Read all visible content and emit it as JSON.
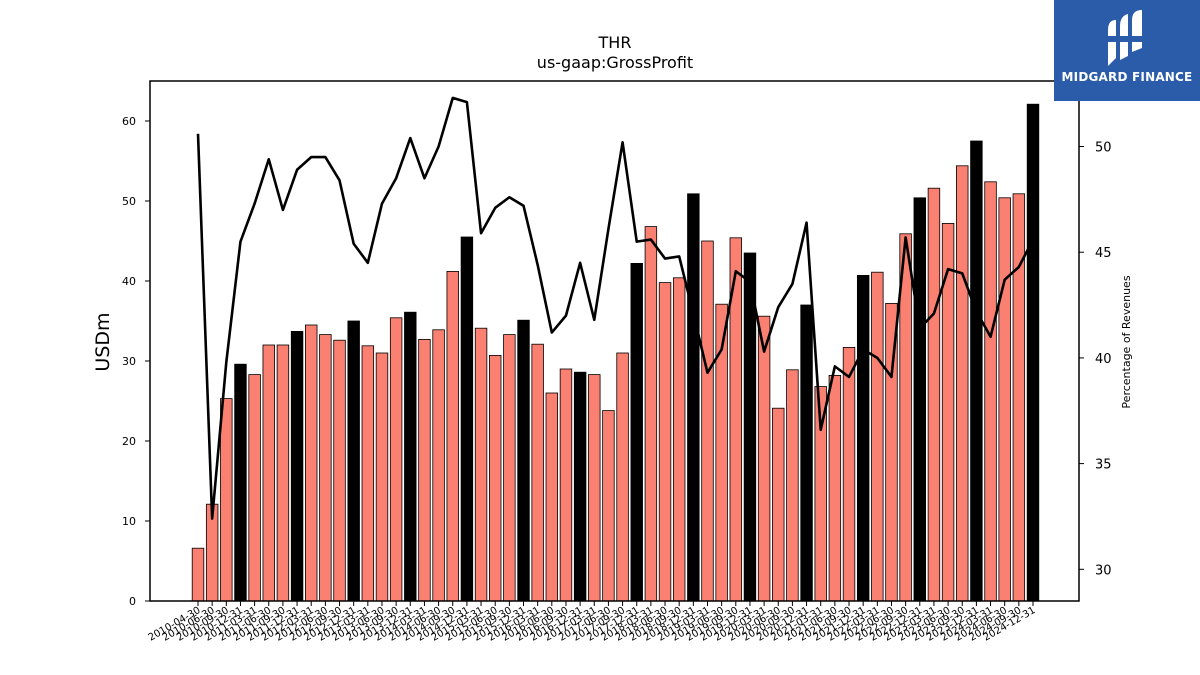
{
  "chart_data": {
    "type": "bar",
    "title": "THR",
    "subtitle": "us-gaap:GrossProfit",
    "ylabel": "USDm",
    "y2label": "Percentage of Revenues",
    "ylim": [
      0,
      65
    ],
    "y2lim": [
      28.5,
      53.1
    ],
    "yticks": [
      0,
      10,
      20,
      30,
      40,
      50,
      60
    ],
    "y2ticks": [
      30,
      35,
      40,
      45,
      50
    ],
    "categories": [
      "2010-04-30",
      "2010-06-30",
      "2010-09-30",
      "2010-12-31",
      "2011-03-31",
      "2011-06-30",
      "2011-09-30",
      "2011-12-31",
      "2012-03-31",
      "2012-06-30",
      "2012-09-30",
      "2012-12-31",
      "2013-03-31",
      "2013-06-30",
      "2013-09-30",
      "2013-12-31",
      "2014-03-31",
      "2014-06-30",
      "2014-09-30",
      "2014-12-31",
      "2015-03-31",
      "2015-06-30",
      "2015-09-30",
      "2015-12-31",
      "2016-03-31",
      "2016-06-30",
      "2016-09-30",
      "2016-12-31",
      "2017-03-31",
      "2017-06-30",
      "2017-09-30",
      "2017-12-31",
      "2018-03-31",
      "2018-06-30",
      "2018-09-30",
      "2018-12-31",
      "2019-03-31",
      "2019-06-30",
      "2019-09-30",
      "2019-12-31",
      "2020-03-31",
      "2020-06-30",
      "2020-09-30",
      "2020-12-31",
      "2021-03-31",
      "2021-06-30",
      "2021-09-30",
      "2021-12-31",
      "2022-03-31",
      "2022-06-30",
      "2022-09-30",
      "2022-12-31",
      "2023-03-31",
      "2023-06-30",
      "2023-09-30",
      "2023-12-31",
      "2024-03-31",
      "2024-06-30",
      "2024-09-30",
      "2024-12-31"
    ],
    "series": [
      {
        "values": [
          6.6,
          12.1,
          25.3,
          29.6,
          28.3,
          32.0,
          32.0,
          33.7,
          34.5,
          33.3,
          32.6,
          35.0,
          31.9,
          31.0,
          35.4,
          36.1,
          32.7,
          33.9,
          41.2,
          45.5,
          34.1,
          30.7,
          33.3,
          35.1,
          32.1,
          26.0,
          29.0,
          28.6,
          28.3,
          23.8,
          31.0,
          42.2,
          46.8,
          39.8,
          40.4,
          50.9,
          45.0,
          37.1,
          45.4,
          43.5,
          35.6,
          24.1,
          28.9,
          37.0,
          26.8,
          28.2,
          31.7,
          40.7,
          41.1,
          37.2,
          45.9,
          50.4,
          51.6,
          47.2,
          54.4,
          57.5,
          52.4,
          50.4,
          50.9,
          62.1
        ],
        "annual": [
          false,
          false,
          false,
          true,
          false,
          false,
          false,
          true,
          false,
          false,
          false,
          true,
          false,
          false,
          false,
          true,
          false,
          false,
          false,
          true,
          false,
          false,
          false,
          true,
          false,
          false,
          false,
          true,
          false,
          false,
          false,
          true,
          false,
          false,
          false,
          true,
          false,
          false,
          false,
          true,
          false,
          false,
          false,
          true,
          false,
          false,
          false,
          true,
          false,
          false,
          false,
          true,
          false,
          false,
          false,
          true,
          false,
          false,
          false,
          true
        ],
        "color": "#fa8072",
        "annual_color": "#000000"
      },
      {
        "type": "line",
        "axis": "right",
        "values": [
          50.6,
          32.4,
          39.8,
          45.5,
          47.3,
          49.4,
          47.0,
          48.9,
          49.5,
          49.5,
          48.4,
          45.4,
          44.5,
          47.3,
          48.5,
          50.4,
          48.5,
          50.0,
          52.3,
          52.1,
          45.9,
          47.1,
          47.6,
          47.2,
          44.4,
          41.2,
          42.0,
          44.5,
          41.8,
          46.1,
          50.2,
          45.5,
          45.6,
          44.7,
          44.8,
          42.1,
          39.3,
          40.4,
          44.1,
          43.6,
          40.3,
          42.4,
          43.5,
          46.4,
          36.6,
          39.6,
          39.1,
          40.4,
          40.0,
          39.1,
          45.7,
          41.4,
          42.1,
          44.2,
          44.0,
          42.2,
          41.0,
          43.7,
          44.3,
          45.6
        ],
        "color": "#000000"
      }
    ]
  },
  "logo": {
    "text": "MIDGARD FINANCE",
    "icon": "midgard-logo-icon"
  }
}
